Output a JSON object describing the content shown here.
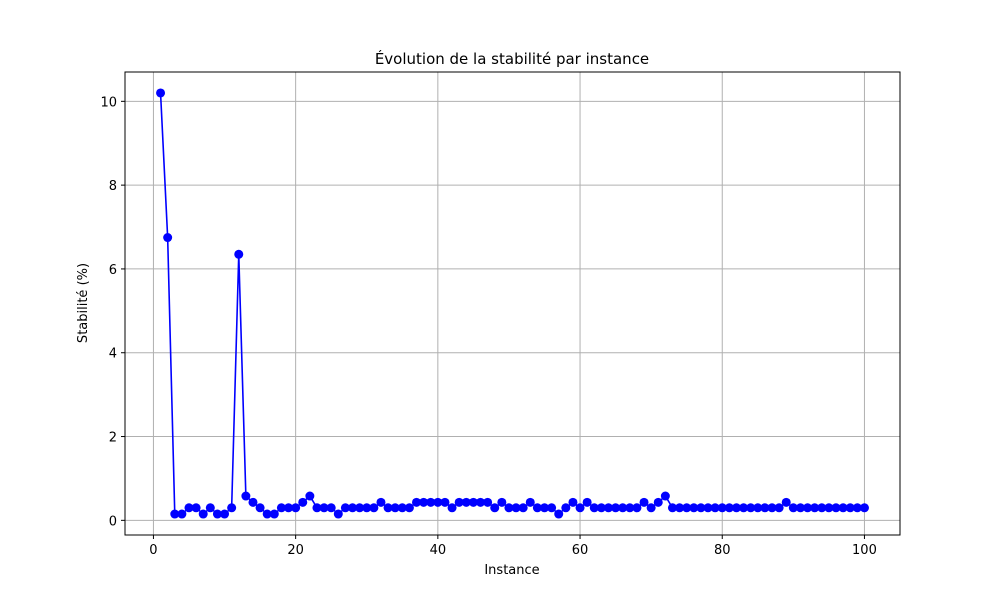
{
  "chart_data": {
    "type": "line",
    "title": "Évolution de la stabilité par instance",
    "xlabel": "Instance",
    "ylabel": "Stabilité (%)",
    "xlim": [
      -4,
      105
    ],
    "ylim": [
      -0.35,
      10.7
    ],
    "xticks": [
      0,
      20,
      40,
      60,
      80,
      100
    ],
    "yticks": [
      0,
      2,
      4,
      6,
      8,
      10
    ],
    "grid": true,
    "line_color": "#0000ff",
    "marker": "circle",
    "x": [
      1,
      2,
      3,
      4,
      5,
      6,
      7,
      8,
      9,
      10,
      11,
      12,
      13,
      14,
      15,
      16,
      17,
      18,
      19,
      20,
      21,
      22,
      23,
      24,
      25,
      26,
      27,
      28,
      29,
      30,
      31,
      32,
      33,
      34,
      35,
      36,
      37,
      38,
      39,
      40,
      41,
      42,
      43,
      44,
      45,
      46,
      47,
      48,
      49,
      50,
      51,
      52,
      53,
      54,
      55,
      56,
      57,
      58,
      59,
      60,
      61,
      62,
      63,
      64,
      65,
      66,
      67,
      68,
      69,
      70,
      71,
      72,
      73,
      74,
      75,
      76,
      77,
      78,
      79,
      80,
      81,
      82,
      83,
      84,
      85,
      86,
      87,
      88,
      89,
      90,
      91,
      92,
      93,
      94,
      95,
      96,
      97,
      98,
      99,
      100
    ],
    "y": [
      10.2,
      6.75,
      0.15,
      0.15,
      0.3,
      0.3,
      0.15,
      0.3,
      0.15,
      0.15,
      0.3,
      6.35,
      0.58,
      0.43,
      0.3,
      0.15,
      0.15,
      0.3,
      0.3,
      0.3,
      0.43,
      0.58,
      0.3,
      0.3,
      0.3,
      0.15,
      0.3,
      0.3,
      0.3,
      0.3,
      0.3,
      0.43,
      0.3,
      0.3,
      0.3,
      0.3,
      0.43,
      0.43,
      0.43,
      0.43,
      0.43,
      0.3,
      0.43,
      0.43,
      0.43,
      0.43,
      0.43,
      0.3,
      0.43,
      0.3,
      0.3,
      0.3,
      0.43,
      0.3,
      0.3,
      0.3,
      0.15,
      0.3,
      0.43,
      0.3,
      0.43,
      0.3,
      0.3,
      0.3,
      0.3,
      0.3,
      0.3,
      0.3,
      0.43,
      0.3,
      0.43,
      0.58,
      0.3,
      0.3,
      0.3,
      0.3,
      0.3,
      0.3,
      0.3,
      0.3,
      0.3,
      0.3,
      0.3,
      0.3,
      0.3,
      0.3,
      0.3,
      0.3,
      0.43,
      0.3,
      0.3,
      0.3,
      0.3,
      0.3,
      0.3,
      0.3,
      0.3,
      0.3,
      0.3,
      0.3
    ]
  }
}
